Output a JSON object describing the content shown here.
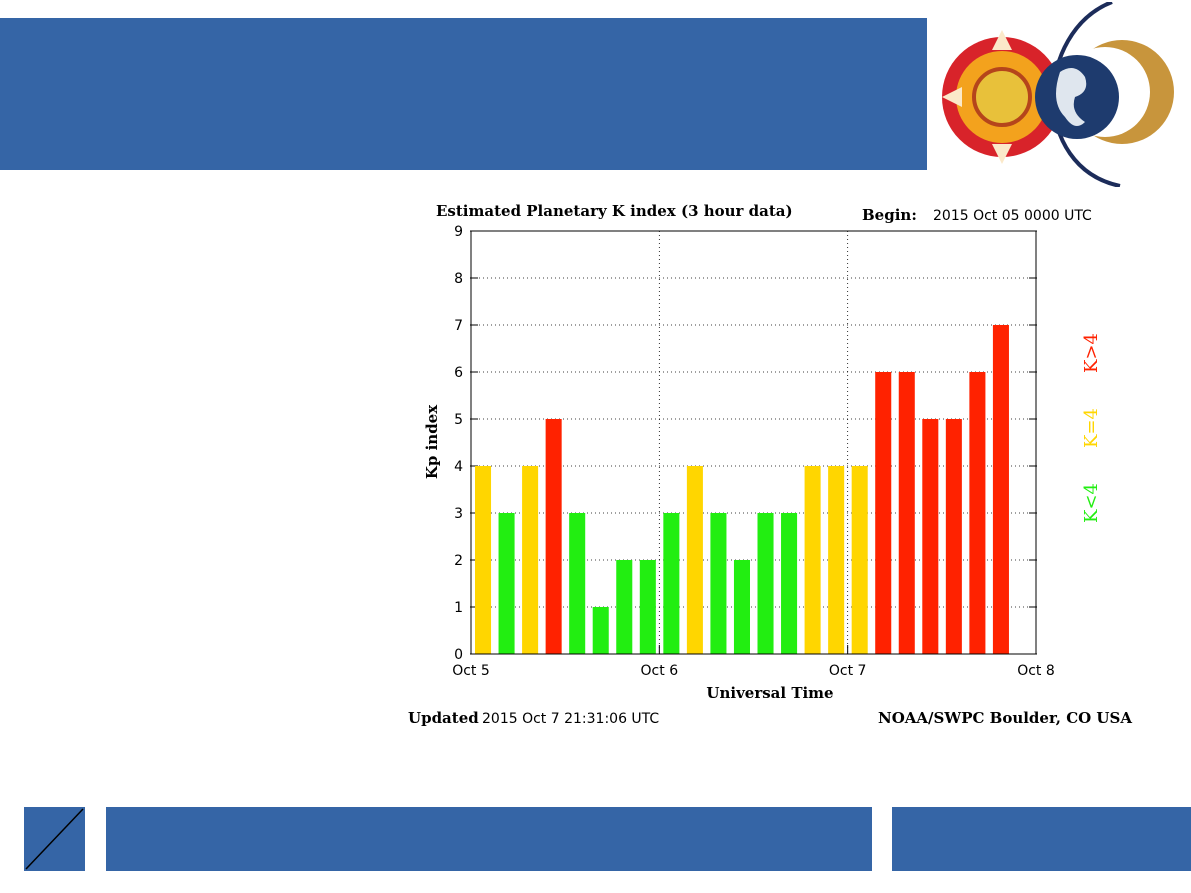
{
  "colors": {
    "banner": "#3565a6",
    "low": "#22ee11",
    "mid": "#ffd600",
    "high": "#ff2200"
  },
  "chart_data": {
    "type": "bar",
    "title": "Estimated Planetary K index (3 hour data)",
    "begin_label": "Begin:",
    "begin_value": "2015 Oct 05 0000 UTC",
    "xlabel": "Universal Time",
    "ylabel": "Kp index",
    "ylim": [
      0,
      9
    ],
    "yticks": [
      "0",
      "1",
      "2",
      "3",
      "4",
      "5",
      "6",
      "7",
      "8",
      "9"
    ],
    "x_tick_labels": [
      "Oct 5",
      "Oct 6",
      "Oct 7",
      "Oct 8"
    ],
    "interval_hours": 3,
    "values": [
      4,
      3,
      4,
      5,
      3,
      1,
      2,
      2,
      3,
      4,
      3,
      2,
      3,
      3,
      4,
      4,
      4,
      6,
      6,
      5,
      5,
      6,
      7
    ],
    "grid": true,
    "legend": [
      "K<4",
      "K=4",
      "K>4"
    ],
    "updated_label": "Updated",
    "updated_value": "2015 Oct  7 21:31:06 UTC",
    "credit": "NOAA/SWPC Boulder, CO USA"
  }
}
